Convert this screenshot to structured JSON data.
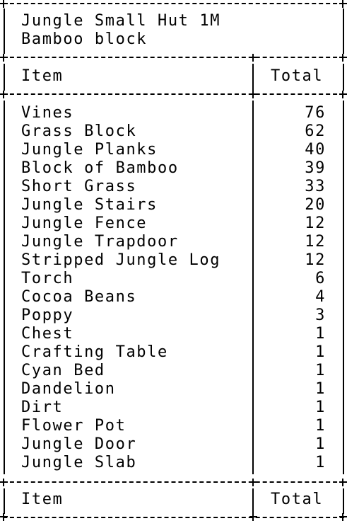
{
  "header": {
    "title": "Jungle Small Hut 1M",
    "subtitle": "Bamboo block"
  },
  "table": {
    "columns": [
      "Item",
      "Total"
    ],
    "rows": [
      {
        "item": "Vines",
        "total": "76"
      },
      {
        "item": "Grass Block",
        "total": "62"
      },
      {
        "item": "Jungle Planks",
        "total": "40"
      },
      {
        "item": "Block of Bamboo",
        "total": "39"
      },
      {
        "item": "Short Grass",
        "total": "33"
      },
      {
        "item": "Jungle Stairs",
        "total": "20"
      },
      {
        "item": "Jungle Fence",
        "total": "12"
      },
      {
        "item": "Jungle Trapdoor",
        "total": "12"
      },
      {
        "item": "Stripped Jungle Log",
        "total": "12"
      },
      {
        "item": "Torch",
        "total": "6"
      },
      {
        "item": "Cocoa Beans",
        "total": "4"
      },
      {
        "item": "Poppy",
        "total": "3"
      },
      {
        "item": "Chest",
        "total": "1"
      },
      {
        "item": "Crafting Table",
        "total": "1"
      },
      {
        "item": "Cyan Bed",
        "total": "1"
      },
      {
        "item": "Dandelion",
        "total": "1"
      },
      {
        "item": "Dirt",
        "total": "1"
      },
      {
        "item": "Flower Pot",
        "total": "1"
      },
      {
        "item": "Jungle Door",
        "total": "1"
      },
      {
        "item": "Jungle Slab",
        "total": "1"
      }
    ],
    "footer": [
      "Item",
      "Total"
    ]
  }
}
